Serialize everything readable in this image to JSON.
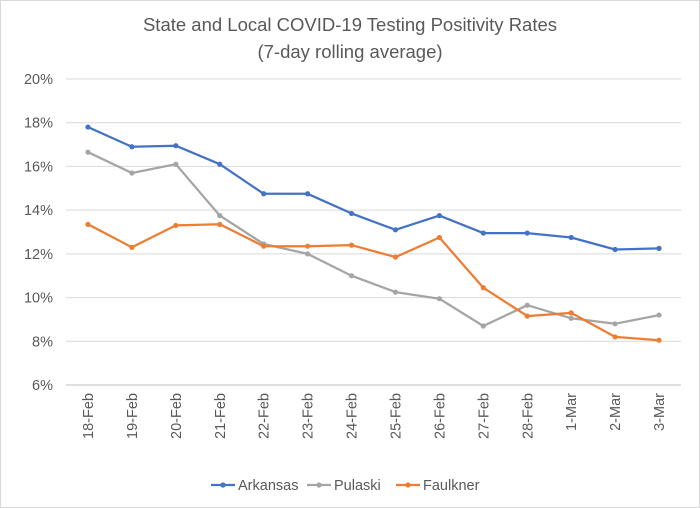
{
  "chart_data": {
    "type": "line",
    "title": "State and Local COVID-19 Testing Positivity Rates",
    "subtitle": "(7-day rolling average)",
    "xlabel": "",
    "ylabel": "",
    "categories": [
      "18-Feb",
      "19-Feb",
      "20-Feb",
      "21-Feb",
      "22-Feb",
      "23-Feb",
      "24-Feb",
      "25-Feb",
      "26-Feb",
      "27-Feb",
      "28-Feb",
      "1-Mar",
      "2-Mar",
      "3-Mar"
    ],
    "ylim": [
      6,
      20
    ],
    "yticks": [
      6,
      8,
      10,
      12,
      14,
      16,
      18,
      20
    ],
    "ytick_labels": [
      "6%",
      "8%",
      "10%",
      "12%",
      "14%",
      "16%",
      "18%",
      "20%"
    ],
    "grid": true,
    "legend_position": "bottom",
    "series": [
      {
        "name": "Arkansas",
        "color": "#4472c4",
        "values": [
          17.8,
          16.9,
          16.95,
          16.1,
          14.75,
          14.75,
          13.85,
          13.1,
          13.75,
          12.95,
          12.95,
          12.75,
          12.2,
          12.25
        ]
      },
      {
        "name": "Pulaski",
        "color": "#a5a5a5",
        "values": [
          16.65,
          15.7,
          16.1,
          13.75,
          12.45,
          12.0,
          11.0,
          10.25,
          9.95,
          8.7,
          9.65,
          9.05,
          8.8,
          9.2
        ]
      },
      {
        "name": "Faulkner",
        "color": "#ed7d31",
        "values": [
          13.35,
          12.3,
          13.3,
          13.35,
          12.35,
          12.35,
          12.4,
          11.85,
          12.75,
          10.45,
          9.15,
          9.3,
          8.2,
          8.05
        ]
      }
    ]
  }
}
